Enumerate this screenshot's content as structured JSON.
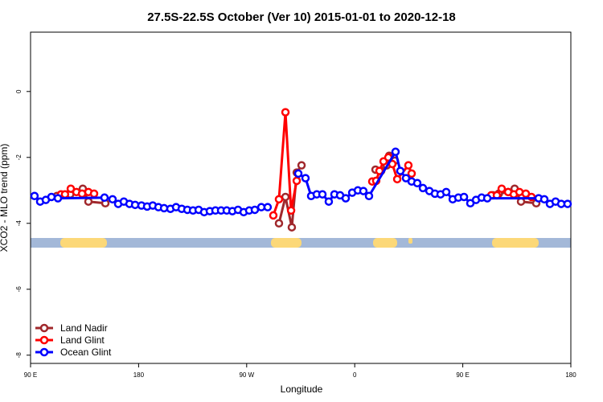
{
  "chart_data": {
    "type": "line",
    "title": "27.5S-22.5S October (Ver 10)   2015-01-01 to 2020-12-18",
    "x_label": "Longitude",
    "y_label": "XCO2 - MLO trend (ppm)",
    "xlim": [
      90,
      540
    ],
    "ylim": [
      -8.25,
      1.8
    ],
    "xticks": [
      {
        "value": 90,
        "label": "90 E"
      },
      {
        "value": 180,
        "label": "180"
      },
      {
        "value": 270,
        "label": "90 W"
      },
      {
        "value": 360,
        "label": "0"
      },
      {
        "value": 450,
        "label": "90 E"
      },
      {
        "value": 540,
        "label": "180"
      }
    ],
    "yticks": [
      -8,
      -6,
      -4,
      -2,
      0
    ],
    "legend": "bottom-left",
    "series": [
      {
        "name": "Land Nadir",
        "color": "#a0282c",
        "x": [
          112,
          123,
          133.5,
          138.2,
          152.3,
          null,
          296.9,
          302.3,
          307.6,
          311.7,
          315.7,
          null,
          377.3,
          382.0,
          386.7,
          388.7,
          393.4,
          null,
          475.1,
          480,
          487.8,
          493.2,
          498.5,
          511.2
        ],
        "values": [
          -3.17,
          -3.12,
          -2.95,
          -3.34,
          -3.39,
          null,
          -4.0,
          -3.2,
          -4.12,
          -2.46,
          -2.24,
          null,
          -2.37,
          -2.41,
          -2.24,
          -1.95,
          -2.1,
          null,
          -3.15,
          -3.1,
          -3.05,
          -2.95,
          -3.34,
          -3.39
        ]
      },
      {
        "name": "Land Glint",
        "color": "#ff0000",
        "x": [
          115.4,
          118.7,
          123.5,
          128.2,
          132.9,
          138.2,
          142.9,
          null,
          292.2,
          296.9,
          302.3,
          307.0,
          311.7,
          null,
          374.6,
          377.9,
          380.6,
          384.0,
          388.0,
          391.3,
          395.4,
          404.7,
          407.4,
          null,
          473.7,
          478.4,
          482.4,
          487.8,
          492.5,
          497.2,
          502.5,
          507.2
        ],
        "values": [
          -3.12,
          -3.12,
          -2.95,
          -3.05,
          -3.1,
          -3.05,
          -3.1,
          null,
          -3.76,
          -3.27,
          -0.63,
          -3.61,
          -2.71,
          null,
          -2.73,
          -2.71,
          -2.41,
          -2.12,
          -2.0,
          -2.2,
          -2.66,
          -2.24,
          -2.49,
          null,
          -3.15,
          -3.15,
          -2.95,
          -3.05,
          -3.12,
          -3.05,
          -3.1,
          -3.2
        ]
      },
      {
        "name": "Ocean Glint",
        "color": "#0000ff",
        "x": [
          93.3,
          98.0,
          102.7,
          107.4,
          112.8,
          151.6,
          158.3,
          163.0,
          167.7,
          172.4,
          177.1,
          182.4,
          187.1,
          191.8,
          196.5,
          201.2,
          206.5,
          211.2,
          215.9,
          220.6,
          225.3,
          230.0,
          234.6,
          239.3,
          244.0,
          248.7,
          253.4,
          258.1,
          262.8,
          267.5,
          272.1,
          276.8,
          282.2,
          287.5,
          null,
          313.0,
          319.0,
          323.7,
          328.4,
          333.1,
          338.4,
          343.1,
          347.8,
          352.5,
          357.9,
          362.6,
          367.2,
          371.9,
          394.0,
          398.0,
          402.7,
          407.4,
          412.1,
          416.8,
          422.2,
          426.8,
          431.5,
          436.2,
          441.6,
          446.3,
          451.0,
          456.3,
          461.0,
          465.7,
          470.4,
          513.2,
          517.9,
          522.6,
          527.3,
          532.0,
          537.3
        ],
        "values": [
          -3.17,
          -3.34,
          -3.29,
          -3.2,
          -3.24,
          -3.22,
          -3.27,
          -3.41,
          -3.34,
          -3.41,
          -3.44,
          -3.46,
          -3.49,
          -3.46,
          -3.51,
          -3.54,
          -3.56,
          -3.51,
          -3.56,
          -3.59,
          -3.61,
          -3.59,
          -3.66,
          -3.63,
          -3.61,
          -3.61,
          -3.61,
          -3.63,
          -3.59,
          -3.66,
          -3.61,
          -3.59,
          -3.51,
          -3.51,
          null,
          -2.49,
          -2.63,
          -3.17,
          -3.12,
          -3.12,
          -3.34,
          -3.12,
          -3.15,
          -3.24,
          -3.07,
          -3.0,
          -3.02,
          -3.17,
          -1.83,
          -2.41,
          -2.63,
          -2.73,
          -2.78,
          -2.93,
          -3.02,
          -3.1,
          -3.12,
          -3.05,
          -3.27,
          -3.22,
          -3.2,
          -3.39,
          -3.29,
          -3.22,
          -3.24,
          -3.24,
          -3.27,
          -3.41,
          -3.34,
          -3.41,
          -3.41
        ]
      }
    ]
  }
}
